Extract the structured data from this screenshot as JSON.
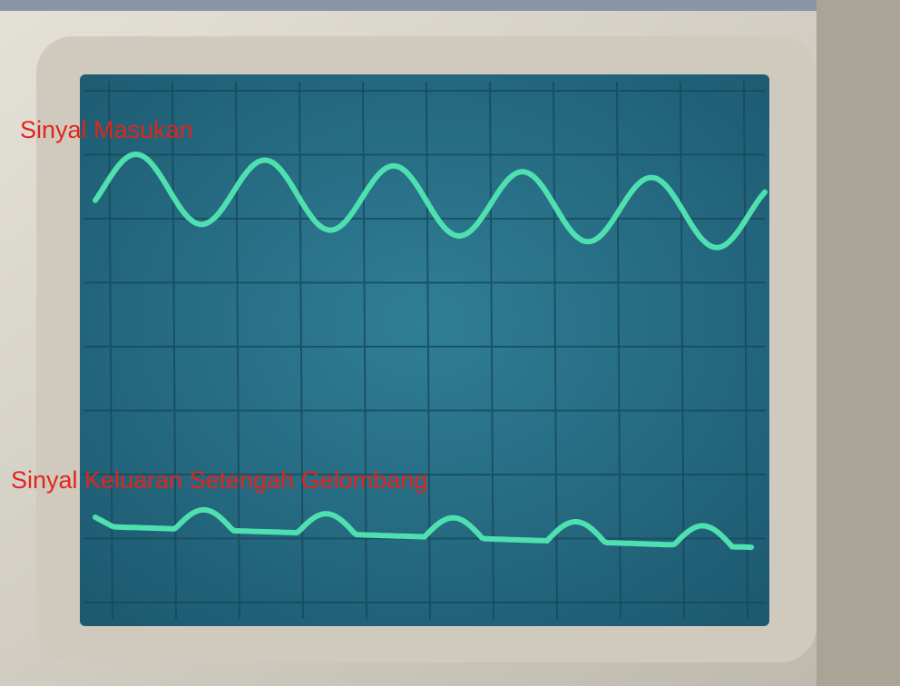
{
  "labels": {
    "input": "Sinyal Masukan",
    "output": "Sinyal Keluaran Setengah Gelombang"
  }
}
